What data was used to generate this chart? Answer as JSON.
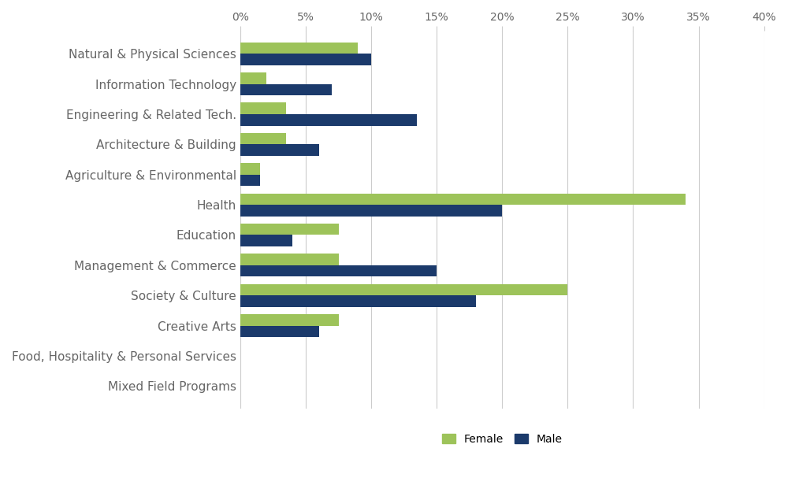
{
  "categories": [
    "Natural & Physical Sciences",
    "Information Technology",
    "Engineering & Related Tech.",
    "Architecture & Building",
    "Agriculture & Environmental",
    "Health",
    "Education",
    "Management & Commerce",
    "Society & Culture",
    "Creative Arts",
    "Food, Hospitality & Personal Services",
    "Mixed Field Programs"
  ],
  "female": [
    9.0,
    2.0,
    3.5,
    3.5,
    1.5,
    34.0,
    7.5,
    7.5,
    25.0,
    7.5,
    0.0,
    0.0
  ],
  "male": [
    10.0,
    7.0,
    13.5,
    6.0,
    1.5,
    20.0,
    4.0,
    15.0,
    18.0,
    6.0,
    0.0,
    0.0
  ],
  "female_color": "#9dc35a",
  "male_color": "#1b3a6b",
  "xlim": [
    0,
    40
  ],
  "xticks": [
    0,
    5,
    10,
    15,
    20,
    25,
    30,
    35,
    40
  ],
  "xtick_labels": [
    "0%",
    "5%",
    "10%",
    "15%",
    "20%",
    "25%",
    "30%",
    "35%",
    "40%"
  ],
  "bar_height": 0.38,
  "legend_labels": [
    "Female",
    "Male"
  ],
  "label_fontsize": 11,
  "tick_fontsize": 10,
  "background_color": "#ffffff",
  "grid_color": "#cccccc"
}
